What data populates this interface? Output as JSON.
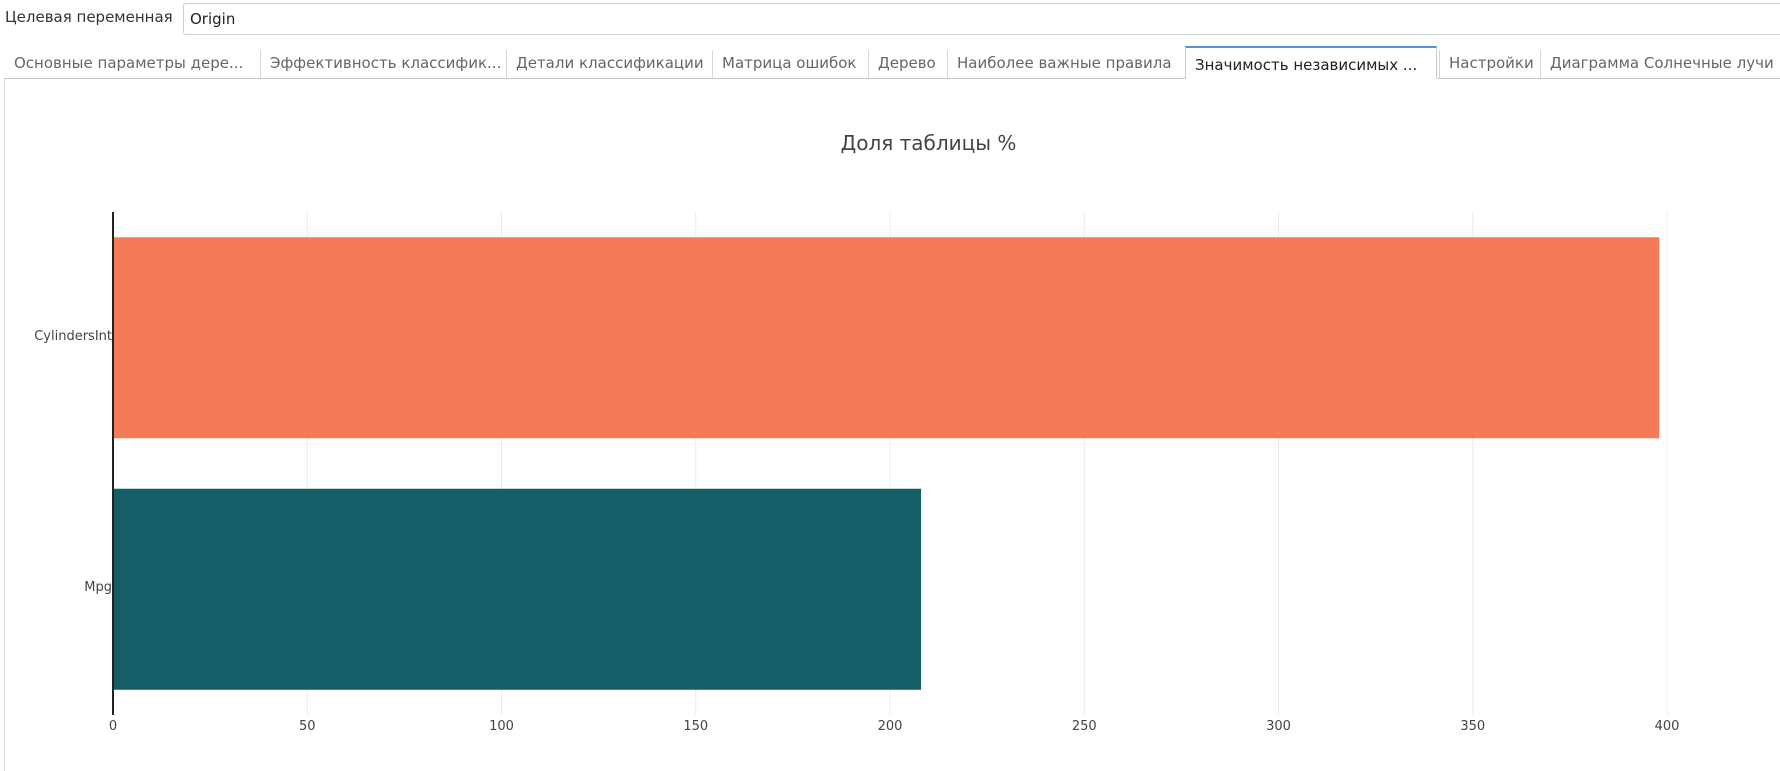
{
  "header": {
    "target_label": "Целевая переменная",
    "target_value": "Origin"
  },
  "tabs": [
    {
      "label": "Основные параметры дере...",
      "active": false
    },
    {
      "label": "Эффективность классифик...",
      "active": false
    },
    {
      "label": "Детали классификации",
      "active": false
    },
    {
      "label": "Матрица ошибок",
      "active": false
    },
    {
      "label": "Дерево",
      "active": false
    },
    {
      "label": "Наиболее важные правила",
      "active": false
    },
    {
      "label": "Значимость независимых ...",
      "active": true
    },
    {
      "label": "Настройки",
      "active": false
    },
    {
      "label": "Диаграмма Солнечные лучи",
      "active": false
    }
  ],
  "colors": {
    "bar_cylinders": "#f37b57",
    "bar_mpg": "#155e68",
    "active_tab_accent": "#5b8fd6"
  },
  "chart_data": {
    "type": "bar",
    "orientation": "horizontal",
    "title": "Доля таблицы %",
    "categories": [
      "CylindersInt",
      "Mpg"
    ],
    "values": [
      398,
      208
    ],
    "bar_colors": [
      "#f37b57",
      "#155e68"
    ],
    "xlim": [
      0,
      400
    ],
    "xticks": [
      0,
      50,
      100,
      150,
      200,
      250,
      300,
      350,
      400
    ],
    "xlabel": "",
    "ylabel": "",
    "grid": true,
    "legend": false
  }
}
